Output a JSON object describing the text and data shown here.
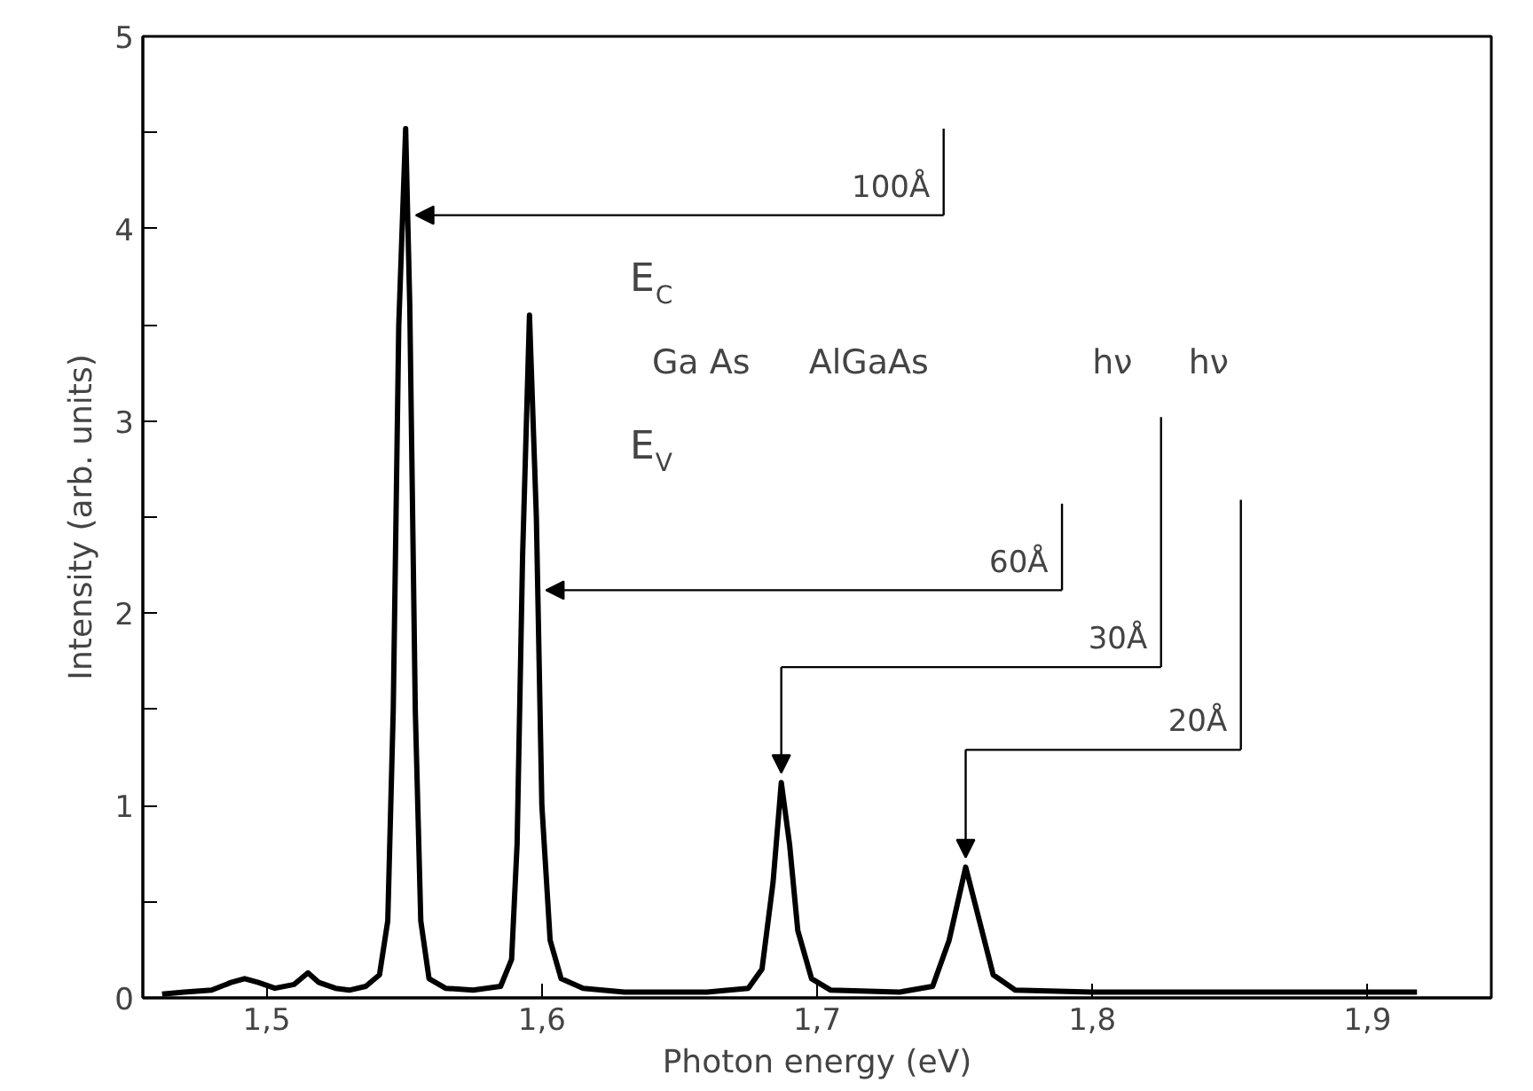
{
  "chart_data": {
    "type": "line",
    "xlabel": "Photon energy (eV)",
    "ylabel": "Intensity (arb. units)",
    "x": [
      1.462,
      1.47,
      1.48,
      1.487,
      1.492,
      1.497,
      1.503,
      1.51,
      1.515,
      1.519,
      1.525,
      1.53,
      1.536,
      1.541,
      1.544,
      1.546,
      1.548,
      1.5505,
      1.552,
      1.554,
      1.556,
      1.559,
      1.565,
      1.575,
      1.585,
      1.589,
      1.591,
      1.593,
      1.5955,
      1.598,
      1.6,
      1.603,
      1.607,
      1.615,
      1.63,
      1.66,
      1.675,
      1.68,
      1.684,
      1.687,
      1.69,
      1.693,
      1.698,
      1.705,
      1.73,
      1.742,
      1.748,
      1.754,
      1.759,
      1.764,
      1.772,
      1.8,
      1.85,
      1.9,
      1.918
    ],
    "series": [
      {
        "color": "#000000",
        "values": [
          0.02,
          0.03,
          0.04,
          0.08,
          0.1,
          0.08,
          0.05,
          0.07,
          0.13,
          0.08,
          0.05,
          0.04,
          0.06,
          0.12,
          0.4,
          1.5,
          3.5,
          4.52,
          3.6,
          1.5,
          0.4,
          0.1,
          0.05,
          0.04,
          0.06,
          0.2,
          0.8,
          2.3,
          3.55,
          2.5,
          1.0,
          0.3,
          0.1,
          0.05,
          0.03,
          0.03,
          0.05,
          0.15,
          0.6,
          1.12,
          0.8,
          0.35,
          0.1,
          0.04,
          0.03,
          0.06,
          0.3,
          0.68,
          0.4,
          0.12,
          0.04,
          0.03,
          0.03,
          0.03,
          0.03
        ]
      }
    ],
    "xlim": [
      1.455,
      1.945
    ],
    "ylim": [
      0,
      5
    ],
    "xticks": [
      {
        "value": 1.5,
        "label": "1,5"
      },
      {
        "value": 1.6,
        "label": "1,6"
      },
      {
        "value": 1.7,
        "label": "1,7"
      },
      {
        "value": 1.8,
        "label": "1,8"
      },
      {
        "value": 1.9,
        "label": "1,9"
      }
    ],
    "yticks": [
      0,
      {
        "value": 0.5,
        "label": null
      },
      1,
      {
        "value": 1.5,
        "label": null
      },
      2,
      {
        "value": 2.5,
        "label": null
      },
      3,
      {
        "value": 3.5,
        "label": null
      },
      4,
      {
        "value": 4.5,
        "label": null
      },
      5
    ],
    "grid": false,
    "marker": "none",
    "line_style": "solid",
    "annotations": [
      {
        "text": "100Å",
        "x": 1.5512,
        "y": 4.07
      },
      {
        "text": "60Å",
        "x": 1.5985,
        "y": 2.12
      },
      "30Å",
      "20Å",
      "E$_{C}$",
      "Ga As",
      "AlGaAs",
      "E$_{V}$",
      "hν",
      "hν"
    ]
  }
}
